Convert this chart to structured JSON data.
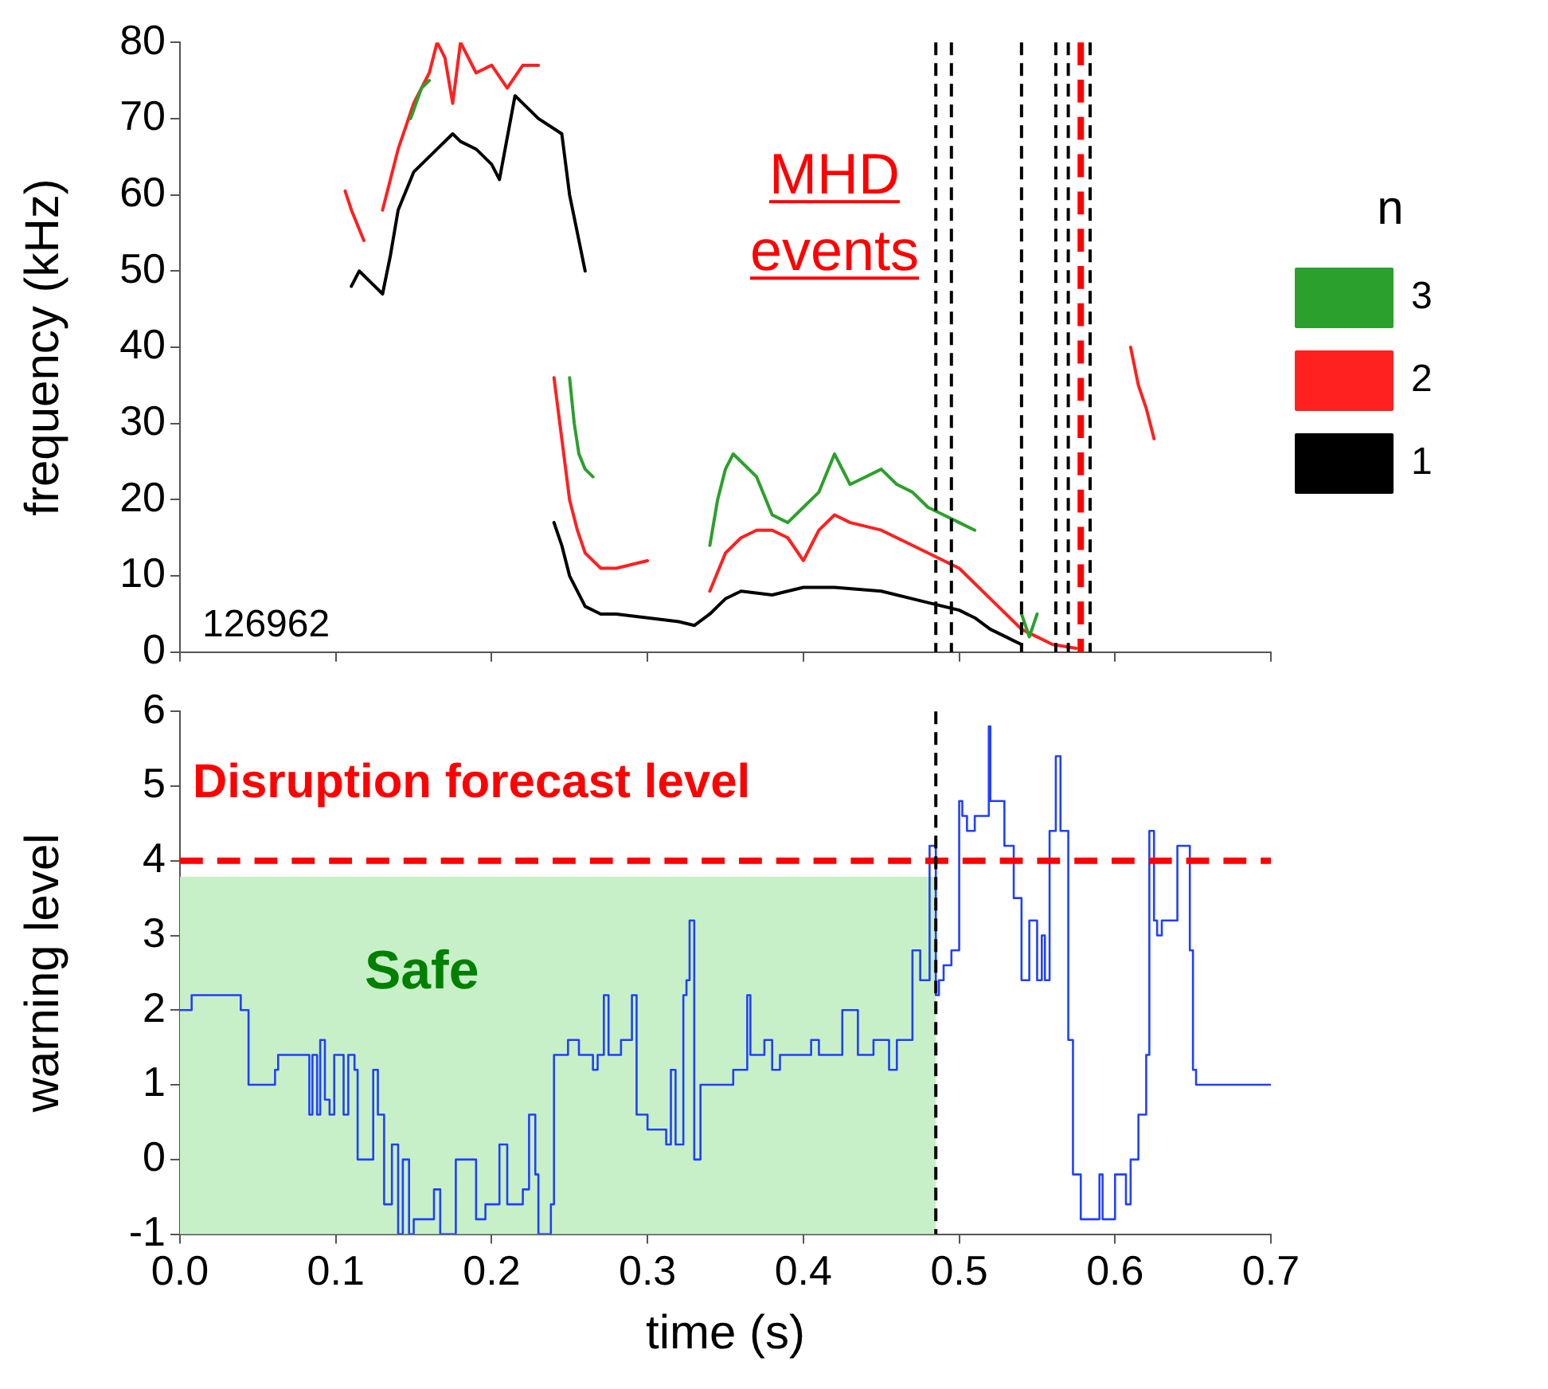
{
  "chart_data": [
    {
      "type": "line",
      "ylabel": "frequency (kHz)",
      "legend_title": "n",
      "legend": "right",
      "tick_labels": "y",
      "xlim": [
        0,
        0.7
      ],
      "ylim": [
        0,
        80
      ],
      "xticks": [
        {
          "value": 0,
          "label": null
        },
        {
          "value": 0.1,
          "label": null
        },
        {
          "value": 0.2,
          "label": null
        },
        {
          "value": 0.3,
          "label": null
        },
        {
          "value": 0.4,
          "label": null
        },
        {
          "value": 0.5,
          "label": null
        },
        {
          "value": 0.6,
          "label": null
        },
        {
          "value": 0.7,
          "label": null
        }
      ],
      "yticks": [
        0,
        10,
        20,
        30,
        40,
        50,
        60,
        70,
        80
      ],
      "annotations": [
        "MHD events",
        "126962"
      ],
      "ref_lines": [
        {
          "axis": "x",
          "value": 0.485,
          "color": "#000000",
          "line_style": "dashed"
        },
        {
          "axis": "x",
          "value": 0.495,
          "color": "#000000",
          "line_style": "dashed"
        },
        {
          "axis": "x",
          "value": 0.54,
          "color": "#000000",
          "line_style": "dashed"
        },
        {
          "axis": "x",
          "value": 0.562,
          "color": "#000000",
          "line_style": "dashed"
        },
        {
          "axis": "x",
          "value": 0.57,
          "color": "#000000",
          "line_style": "dashed"
        },
        {
          "axis": "x",
          "value": 0.578,
          "color": "#ff0000",
          "line_style": "dashed"
        },
        {
          "axis": "x",
          "value": 0.584,
          "color": "#000000",
          "line_style": "dashed"
        }
      ],
      "series": [
        {
          "name": "3",
          "color": "#2ca02c",
          "x": [
            0.148,
            0.155,
            0.16,
            0.165,
            0.17,
            0.25,
            0.253,
            0.256,
            0.26,
            0.265,
            0.27,
            0.3,
            0.31,
            0.34,
            0.345,
            0.35,
            0.355,
            0.36,
            0.37,
            0.38,
            0.39,
            0.4,
            0.41,
            0.42,
            0.43,
            0.44,
            0.45,
            0.46,
            0.47,
            0.48,
            0.49,
            0.5,
            0.51,
            0.52,
            0.53,
            0.54,
            0.545,
            0.55
          ],
          "values": [
            70,
            74,
            75,
            null,
            null,
            36,
            30,
            26,
            24,
            23,
            null,
            null,
            null,
            14,
            20,
            24,
            26,
            25,
            23,
            18,
            17,
            19,
            21,
            26,
            22,
            23,
            24,
            22,
            21,
            19,
            18,
            17,
            16,
            null,
            null,
            5,
            2,
            5
          ]
        },
        {
          "name": "2",
          "color": "#ff2020",
          "x": [
            0.106,
            0.11,
            0.118,
            0.122,
            0.13,
            0.14,
            0.15,
            0.16,
            0.165,
            0.17,
            0.175,
            0.18,
            0.19,
            0.2,
            0.21,
            0.22,
            0.23,
            0.235,
            0.24,
            0.245,
            0.25,
            0.255,
            0.26,
            0.27,
            0.28,
            0.3,
            0.31,
            0.34,
            0.35,
            0.36,
            0.37,
            0.38,
            0.39,
            0.4,
            0.41,
            0.42,
            0.43,
            0.45,
            0.47,
            0.5,
            0.52,
            0.54,
            0.56,
            0.575,
            0.58,
            0.59,
            0.61,
            0.615,
            0.62,
            0.625
          ],
          "values": [
            60.5,
            58,
            54,
            null,
            58,
            66,
            72,
            76,
            80,
            78,
            72,
            80,
            76,
            77,
            74,
            77,
            77,
            null,
            36,
            28,
            20,
            16,
            13,
            11,
            11,
            12,
            null,
            8,
            13,
            15,
            16,
            16,
            15,
            12,
            16,
            18,
            17,
            16,
            14,
            11,
            7,
            3,
            1,
            0.5,
            null,
            null,
            40,
            35,
            32,
            28
          ]
        },
        {
          "name": "1",
          "color": "#000000",
          "x": [
            0.11,
            0.115,
            0.125,
            0.13,
            0.135,
            0.14,
            0.15,
            0.165,
            0.175,
            0.18,
            0.19,
            0.2,
            0.205,
            0.215,
            0.23,
            0.245,
            0.25,
            0.255,
            0.26
          ],
          "values": [
            48,
            50,
            48,
            47,
            52,
            58,
            63,
            66,
            68,
            67,
            66,
            64,
            62,
            73,
            70,
            68,
            60,
            55,
            50
          ]
        },
        {
          "color": "#000000",
          "x": [
            0.24,
            0.245,
            0.25,
            0.26,
            0.27,
            0.28,
            0.3,
            0.32,
            0.33,
            0.34,
            0.35,
            0.36,
            0.38,
            0.4,
            0.42,
            0.45,
            0.48,
            0.5,
            0.51,
            0.52,
            0.53,
            0.54
          ],
          "values": [
            17,
            14,
            10,
            6,
            5,
            5,
            4.5,
            4,
            3.5,
            5,
            7,
            8,
            7.5,
            8.5,
            8.5,
            8,
            6.5,
            5.5,
            4.5,
            3,
            2,
            1
          ]
        }
      ]
    },
    {
      "type": "step",
      "xlabel": "time (s)",
      "ylabel": "warning level",
      "legend": false,
      "xlim": [
        0,
        0.7
      ],
      "ylim": [
        -1,
        6
      ],
      "xticks": [
        {
          "value": 0,
          "label": "0.0"
        },
        {
          "value": 0.1,
          "label": "0.1"
        },
        {
          "value": 0.2,
          "label": "0.2"
        },
        {
          "value": 0.3,
          "label": "0.3"
        },
        {
          "value": 0.4,
          "label": "0.4"
        },
        {
          "value": 0.5,
          "label": "0.5"
        },
        {
          "value": 0.6,
          "label": "0.6"
        },
        {
          "value": 0.7,
          "label": "0.7"
        }
      ],
      "yticks": [
        -1,
        0,
        1,
        2,
        3,
        4,
        5,
        6
      ],
      "ref_lines": [
        {
          "axis": "y",
          "value": 4,
          "label": "Disruption forecast level",
          "color": "#ff0000",
          "line_style": "dashed"
        },
        {
          "axis": "x",
          "value": 0.485,
          "color": "#000000",
          "line_style": "dashed"
        }
      ],
      "bands": [
        {
          "axis": "x",
          "from": 0,
          "to": 0.485,
          "label": "Safe",
          "color": "#c8f0c8"
        }
      ],
      "series": [
        {
          "color": "#2040ff",
          "x": [
            0,
            0.0075,
            0.039,
            0.044,
            0.061,
            0.063,
            0.083,
            0.085,
            0.088,
            0.09,
            0.093,
            0.096,
            0.099,
            0.105,
            0.108,
            0.112,
            0.114,
            0.12,
            0.124,
            0.127,
            0.131,
            0.136,
            0.14,
            0.143,
            0.147,
            0.15,
            0.163,
            0.167,
            0.177,
            0.19,
            0.196,
            0.205,
            0.21,
            0.22,
            0.224,
            0.228,
            0.23,
            0.238,
            0.24,
            0.249,
            0.256,
            0.265,
            0.268,
            0.272,
            0.275,
            0.283,
            0.29,
            0.293,
            0.3,
            0.312,
            0.315,
            0.318,
            0.323,
            0.325,
            0.327,
            0.33,
            0.334,
            0.355,
            0.364,
            0.366,
            0.375,
            0.38,
            0.385,
            0.405,
            0.41,
            0.415,
            0.425,
            0.435,
            0.437,
            0.445,
            0.455,
            0.46,
            0.47,
            0.475,
            0.481,
            0.485,
            0.487,
            0.49,
            0.495,
            0.5,
            0.502,
            0.505,
            0.51,
            0.519,
            0.52,
            0.529,
            0.535,
            0.54,
            0.545,
            0.55,
            0.553,
            0.555,
            0.558,
            0.562,
            0.565,
            0.57,
            0.573,
            0.578,
            0.58,
            0.59,
            0.592,
            0.597,
            0.6,
            0.607,
            0.61,
            0.615,
            0.62,
            0.622,
            0.625,
            0.627,
            0.63,
            0.64,
            0.648,
            0.65,
            0.652,
            0.66,
            0.7
          ],
          "values": [
            2,
            2.2,
            2,
            1,
            1.2,
            1.4,
            0.6,
            1.4,
            0.6,
            1.6,
            0.8,
            0.6,
            1.4,
            0.6,
            1.4,
            1.2,
            0,
            0,
            1.2,
            0.6,
            -0.6,
            0.2,
            -1,
            0,
            -1,
            -0.8,
            -0.4,
            -1,
            0,
            -0.8,
            -0.6,
            0.2,
            -0.6,
            -0.4,
            0.6,
            -0.2,
            -1,
            -0.6,
            1.4,
            1.6,
            1.4,
            1.2,
            1.4,
            2.2,
            1.4,
            1.6,
            2.2,
            0.6,
            0.4,
            0.2,
            1.2,
            0.2,
            2.2,
            2.4,
            3.2,
            0,
            1,
            1.2,
            2.2,
            1.4,
            1.6,
            1.2,
            1.4,
            1.6,
            1.4,
            1.4,
            2,
            1.4,
            1.4,
            1.6,
            1.2,
            1.6,
            2.8,
            2.4,
            4.2,
            2.2,
            2.4,
            2.6,
            2.8,
            4.8,
            4.6,
            4.4,
            4.6,
            5.8,
            4.8,
            4.2,
            3.5,
            2.4,
            3.2,
            2.4,
            3,
            2.4,
            4.4,
            5.4,
            4.4,
            1.6,
            -0.2,
            -0.8,
            -0.8,
            -0.2,
            -0.8,
            -0.8,
            -0.2,
            -0.6,
            0,
            0.6,
            1.4,
            4.4,
            3.2,
            3,
            3.2,
            4.2,
            2.8,
            1.2,
            1,
            1,
            1
          ]
        }
      ]
    }
  ]
}
